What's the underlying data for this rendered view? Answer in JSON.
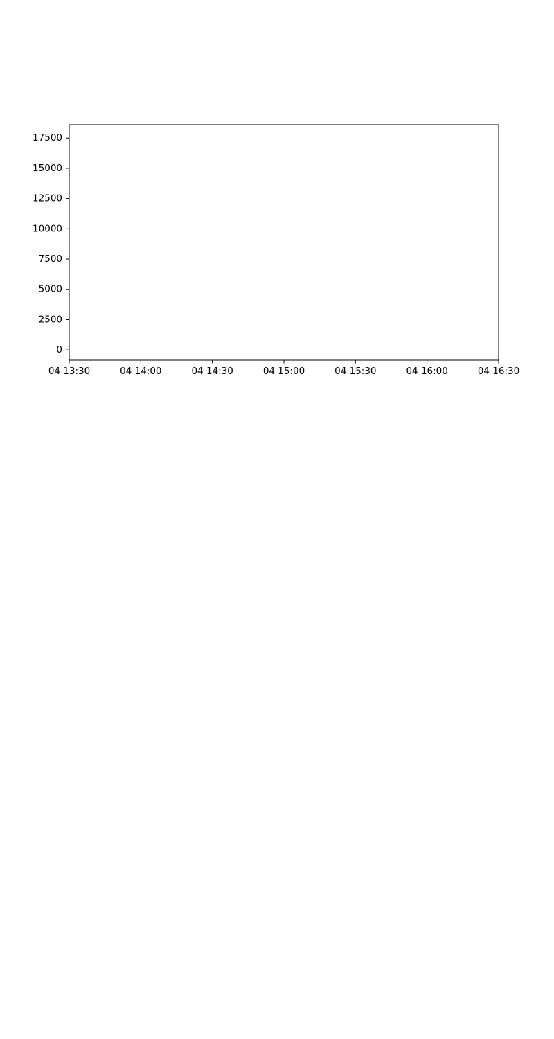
{
  "chart_data": {
    "type": "line",
    "title": "",
    "xlabel": "",
    "ylabel": "",
    "x_axis": {
      "scale": "time",
      "range": [
        "04 13:30",
        "04 16:30"
      ],
      "tick_labels": [
        "04 13:30",
        "04 14:00",
        "04 14:30",
        "04 15:00",
        "04 15:30",
        "04 16:00",
        "04 16:30"
      ]
    },
    "y_axis": {
      "range": [
        -850,
        18600
      ],
      "ticks": [
        0,
        2500,
        5000,
        7500,
        10000,
        12500,
        15000,
        17500
      ],
      "tick_labels": [
        "0",
        "2500",
        "5000",
        "7500",
        "10000",
        "12500",
        "15000",
        "17500"
      ]
    },
    "series": [],
    "grid": false,
    "legend": "none"
  }
}
